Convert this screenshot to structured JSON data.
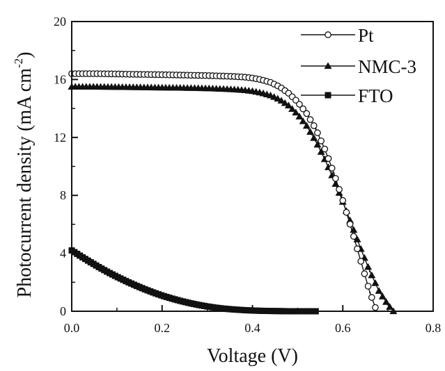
{
  "chart_data": {
    "type": "line",
    "title": "",
    "xlabel": "Voltage (V)",
    "ylabel": "Photocurrent density (mA cm",
    "ylabel_superscript": "-2",
    "ylabel_suffix": ")",
    "xlim": [
      0.0,
      0.8
    ],
    "ylim": [
      0,
      20
    ],
    "xticks": [
      "0.0",
      "0.2",
      "0.4",
      "0.6",
      "0.8"
    ],
    "yticks": [
      "0",
      "4",
      "8",
      "12",
      "16",
      "20"
    ],
    "grid": false,
    "legend_position": "top-right",
    "series": [
      {
        "name": "Pt",
        "marker": "open-circle",
        "color": "#111111",
        "x": [
          0.0,
          0.05,
          0.1,
          0.15,
          0.2,
          0.25,
          0.3,
          0.35,
          0.38,
          0.4,
          0.42,
          0.44,
          0.46,
          0.48,
          0.5,
          0.52,
          0.54,
          0.56,
          0.58,
          0.6,
          0.62,
          0.64,
          0.66,
          0.675
        ],
        "y": [
          16.4,
          16.4,
          16.38,
          16.35,
          16.33,
          16.3,
          16.27,
          16.22,
          16.17,
          16.1,
          15.98,
          15.8,
          15.5,
          15.05,
          14.45,
          13.65,
          12.6,
          11.2,
          9.55,
          7.65,
          5.6,
          3.45,
          1.3,
          0.0
        ]
      },
      {
        "name": "NMC-3",
        "marker": "filled-triangle",
        "color": "#111111",
        "x": [
          0.0,
          0.05,
          0.1,
          0.15,
          0.2,
          0.25,
          0.3,
          0.35,
          0.38,
          0.4,
          0.42,
          0.44,
          0.46,
          0.48,
          0.5,
          0.52,
          0.54,
          0.56,
          0.58,
          0.6,
          0.62,
          0.64,
          0.66,
          0.68,
          0.7,
          0.712
        ],
        "y": [
          15.5,
          15.5,
          15.48,
          15.46,
          15.44,
          15.42,
          15.39,
          15.33,
          15.27,
          15.2,
          15.08,
          14.9,
          14.62,
          14.2,
          13.6,
          12.8,
          11.75,
          10.5,
          9.1,
          7.55,
          5.95,
          4.3,
          2.75,
          1.4,
          0.45,
          0.0
        ]
      },
      {
        "name": "FTO",
        "marker": "filled-square",
        "color": "#111111",
        "x": [
          0.0,
          0.02,
          0.04,
          0.06,
          0.08,
          0.1,
          0.12,
          0.14,
          0.16,
          0.18,
          0.2,
          0.22,
          0.24,
          0.26,
          0.28,
          0.3,
          0.32,
          0.34,
          0.36,
          0.38,
          0.4,
          0.42,
          0.44,
          0.46,
          0.48,
          0.5,
          0.52,
          0.54
        ],
        "y": [
          4.2,
          3.8,
          3.42,
          3.05,
          2.7,
          2.38,
          2.08,
          1.8,
          1.54,
          1.3,
          1.08,
          0.89,
          0.72,
          0.57,
          0.44,
          0.33,
          0.24,
          0.17,
          0.12,
          0.08,
          0.05,
          0.03,
          0.02,
          0.01,
          0.0,
          0.0,
          0.0,
          0.0
        ]
      }
    ]
  }
}
